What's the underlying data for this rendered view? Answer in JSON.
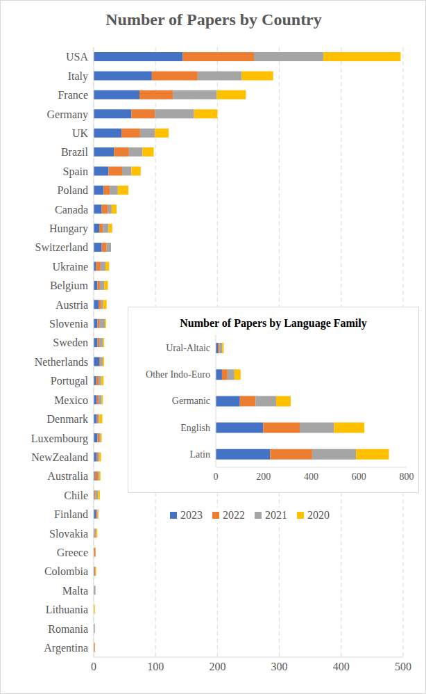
{
  "chart_data": [
    {
      "type": "bar",
      "title": "Number of Papers by Country",
      "orientation": "horizontal",
      "stacked": true,
      "grid": true,
      "legend": "bottom",
      "categories": [
        "USA",
        "Italy",
        "France",
        "Germany",
        "UK",
        "Brazil",
        "Spain",
        "Poland",
        "Canada",
        "Hungary",
        "Switzerland",
        "Ukraine",
        "Belgium",
        "Austria",
        "Slovenia",
        "Sweden",
        "Netherlands",
        "Portugal",
        "Mexico",
        "Denmark",
        "Luxembourg",
        "NewZealand",
        "Australia",
        "Chile",
        "Finland",
        "Slovakia",
        "Greece",
        "Colombia",
        "Malta",
        "Lithuania",
        "Romania",
        "Argentina"
      ],
      "series": [
        {
          "name": "2023",
          "color": "#4472c4",
          "values": [
            144,
            94,
            74,
            61,
            45,
            33,
            24,
            16,
            13,
            9,
            13,
            4,
            6,
            8,
            6,
            6,
            9,
            4,
            5,
            5,
            6,
            5,
            2,
            1,
            4,
            1,
            0,
            1,
            0,
            0,
            0,
            0
          ]
        },
        {
          "name": "2022",
          "color": "#ed7d31",
          "values": [
            115,
            74,
            54,
            38,
            30,
            24,
            22,
            10,
            10,
            6,
            8,
            7,
            4,
            4,
            3,
            3,
            2,
            4,
            3,
            2,
            3,
            2,
            5,
            2,
            2,
            1,
            3,
            2,
            0,
            0,
            0,
            2
          ]
        },
        {
          "name": "2021",
          "color": "#a5a5a5",
          "values": [
            112,
            71,
            71,
            63,
            24,
            22,
            15,
            13,
            6,
            9,
            7,
            8,
            7,
            3,
            9,
            6,
            4,
            4,
            5,
            2,
            2,
            2,
            2,
            4,
            1,
            2,
            0,
            0,
            3,
            0,
            2,
            0
          ]
        },
        {
          "name": "2020",
          "color": "#ffc000",
          "values": [
            125,
            51,
            47,
            38,
            22,
            18,
            15,
            17,
            8,
            6,
            0,
            6,
            6,
            6,
            2,
            2,
            2,
            4,
            2,
            5,
            2,
            3,
            2,
            3,
            1,
            2,
            0,
            1,
            0,
            2,
            0,
            0
          ]
        }
      ],
      "xlim": [
        0,
        500
      ],
      "xticks": [
        0,
        100,
        200,
        300,
        400,
        500
      ]
    },
    {
      "type": "bar",
      "title": "Number of Papers by Language Family",
      "orientation": "horizontal",
      "stacked": true,
      "grid": false,
      "categories": [
        "Ural-Altaic",
        "Other Indo-Euro",
        "Germanic",
        "English",
        "Latin"
      ],
      "series": [
        {
          "name": "2023",
          "color": "#4472c4",
          "values": [
            9,
            26,
            101,
            199,
            228
          ]
        },
        {
          "name": "2022",
          "color": "#ed7d31",
          "values": [
            6,
            23,
            66,
            153,
            176
          ]
        },
        {
          "name": "2021",
          "color": "#a5a5a5",
          "values": [
            12,
            29,
            86,
            144,
            184
          ]
        },
        {
          "name": "2020",
          "color": "#ffc000",
          "values": [
            6,
            26,
            61,
            127,
            138
          ]
        }
      ],
      "xlim": [
        0,
        800
      ],
      "xticks": [
        0,
        200,
        400,
        600,
        800
      ]
    }
  ]
}
